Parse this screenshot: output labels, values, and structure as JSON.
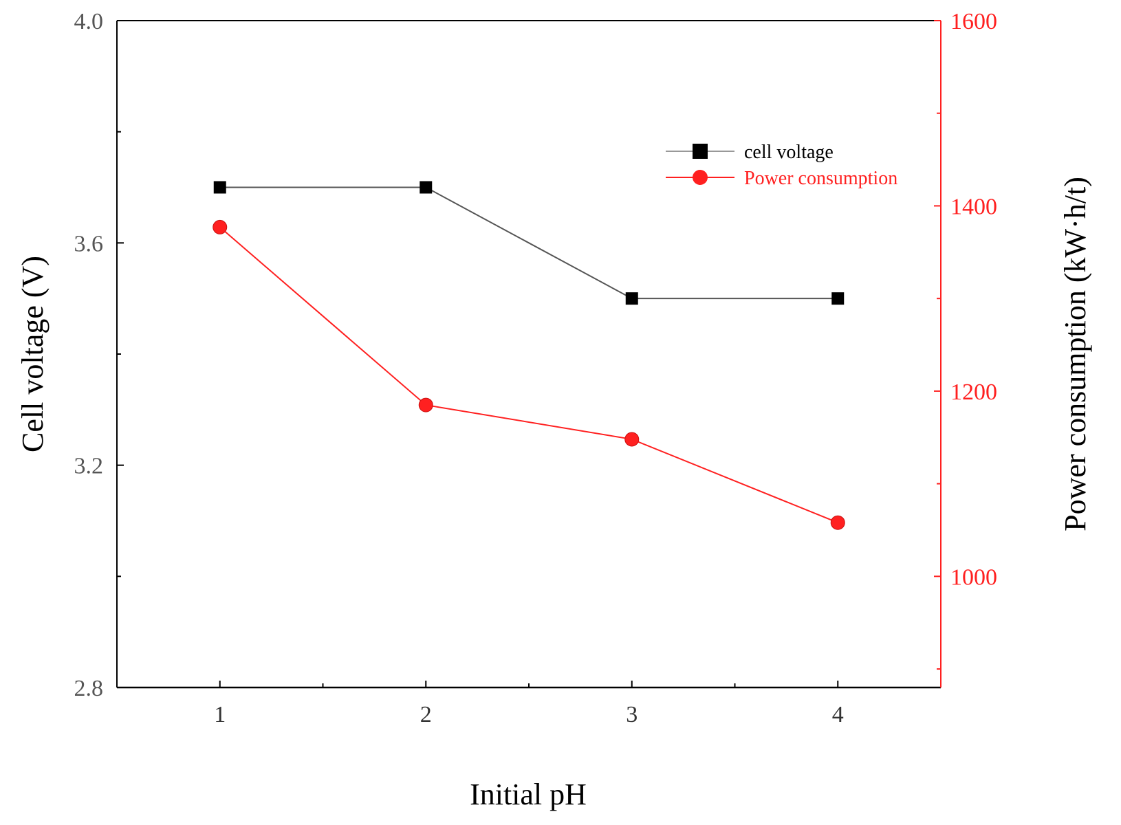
{
  "chart_data": {
    "type": "line",
    "title": "",
    "xlabel": "Initial pH",
    "ylabel": "Cell voltage (V)",
    "y2label": "Power consumption (kW·h/t)",
    "xlim": [
      0.5,
      4.5
    ],
    "ylim": [
      2.8,
      4.0
    ],
    "y2lim": [
      880,
      1600
    ],
    "x_ticks": [
      1,
      2,
      3,
      4
    ],
    "x_minor_ticks": [
      1.5,
      2.5,
      3.5
    ],
    "y_ticks": [
      2.8,
      3.2,
      3.6,
      4.0
    ],
    "y_tick_labels": [
      "2.8",
      "3.2",
      "3.6",
      "4.0"
    ],
    "y_minor_ticks": [
      3.0,
      3.4,
      3.8
    ],
    "y2_ticks": [
      1000,
      1200,
      1400,
      1600
    ],
    "y2_tick_labels": [
      "1000",
      "1200",
      "1400",
      "1600"
    ],
    "y2_minor_ticks": [
      900,
      1100,
      1300,
      1500
    ],
    "grid": false,
    "legend_position": "top-right",
    "x": [
      1,
      2,
      3,
      4
    ],
    "series": [
      {
        "name": "cell voltage",
        "axis": "left",
        "marker": "square",
        "color": "#000000",
        "line_color": "#555555",
        "values": [
          3.7,
          3.7,
          3.5,
          3.5
        ]
      },
      {
        "name": "Power consumption",
        "axis": "right",
        "marker": "circle",
        "color": "#ff2020",
        "line_color": "#ff2020",
        "values": [
          1377,
          1185,
          1148,
          1058
        ]
      }
    ]
  },
  "colors": {
    "axis_left": "#000000",
    "axis_right": "#ff2020",
    "tick_label_left": "#555555",
    "tick_label_right": "#ff2020"
  }
}
